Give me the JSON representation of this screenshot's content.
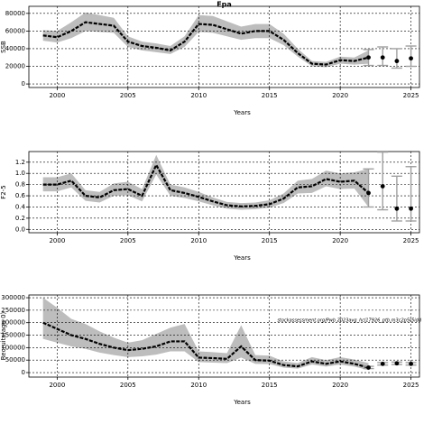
{
  "chart_data": [
    {
      "type": "band-line",
      "title": "Epa",
      "ylabel": "SSB",
      "xlabel": "Years",
      "x": [
        1999,
        2000,
        2001,
        2002,
        2003,
        2004,
        2005,
        2006,
        2007,
        2008,
        2009,
        2010,
        2011,
        2012,
        2013,
        2014,
        2015,
        2016,
        2017,
        2018,
        2019,
        2020,
        2021,
        2022
      ],
      "values": [
        55000,
        53000,
        60000,
        70000,
        68000,
        66000,
        48000,
        43000,
        41000,
        38000,
        48000,
        68000,
        67000,
        62000,
        57000,
        60000,
        60000,
        50000,
        35000,
        23000,
        22000,
        27000,
        26000,
        30000
      ],
      "upper": [
        61000,
        60000,
        70000,
        81000,
        78000,
        75000,
        54000,
        48000,
        46000,
        43000,
        54000,
        78000,
        77000,
        71000,
        65000,
        68000,
        68000,
        57000,
        40000,
        26000,
        25000,
        31000,
        30000,
        38000
      ],
      "lower": [
        49000,
        47000,
        52000,
        60000,
        59000,
        58000,
        42000,
        38000,
        36000,
        34000,
        42000,
        59000,
        58000,
        54000,
        50000,
        52000,
        52000,
        44000,
        31000,
        20000,
        19000,
        23000,
        22000,
        23000
      ],
      "proj_x": [
        2022,
        2023,
        2024,
        2025
      ],
      "proj_values": [
        30000,
        30000,
        26000,
        29000
      ],
      "proj_lower": [
        21000,
        21000,
        18000,
        20000
      ],
      "proj_upper": [
        39000,
        42000,
        40000,
        43000
      ],
      "xlim": [
        1998,
        2025.6
      ],
      "xticks": [
        2000,
        2005,
        2010,
        2015,
        2020,
        2025
      ],
      "ylim": [
        -4000,
        88000
      ],
      "yticks": [
        0,
        20000,
        40000,
        60000,
        80000
      ],
      "line_color": "#000000",
      "band_color": "#bdbdbd",
      "errorbar_color": "#a0a0a0",
      "grid": true
    },
    {
      "type": "band-line",
      "ylabel": "F2-5",
      "xlabel": "Years",
      "x": [
        1999,
        2000,
        2001,
        2002,
        2003,
        2004,
        2005,
        2006,
        2007,
        2008,
        2009,
        2010,
        2011,
        2012,
        2013,
        2014,
        2015,
        2016,
        2017,
        2018,
        2019,
        2020,
        2021,
        2022
      ],
      "values": [
        0.8,
        0.8,
        0.87,
        0.6,
        0.57,
        0.7,
        0.72,
        0.6,
        1.15,
        0.7,
        0.65,
        0.58,
        0.5,
        0.43,
        0.41,
        0.42,
        0.45,
        0.55,
        0.75,
        0.77,
        0.9,
        0.85,
        0.87,
        0.65
      ],
      "upper": [
        0.93,
        0.93,
        1.0,
        0.7,
        0.67,
        0.82,
        0.85,
        0.72,
        1.33,
        0.8,
        0.75,
        0.67,
        0.57,
        0.49,
        0.47,
        0.48,
        0.52,
        0.64,
        0.87,
        0.9,
        1.05,
        1.0,
        1.02,
        1.08
      ],
      "lower": [
        0.68,
        0.68,
        0.75,
        0.51,
        0.48,
        0.6,
        0.61,
        0.5,
        0.98,
        0.6,
        0.56,
        0.5,
        0.43,
        0.37,
        0.35,
        0.36,
        0.39,
        0.47,
        0.64,
        0.65,
        0.77,
        0.72,
        0.73,
        0.4
      ],
      "proj_x": [
        2022,
        2023,
        2024,
        2025
      ],
      "proj_values": [
        0.65,
        0.77,
        0.37,
        0.37
      ],
      "proj_lower": [
        0.4,
        0.35,
        0.15,
        0.15
      ],
      "proj_upper": [
        1.08,
        1.38,
        0.95,
        1.12
      ],
      "xlim": [
        1998,
        2025.6
      ],
      "xticks": [
        2000,
        2005,
        2010,
        2015,
        2020,
        2025
      ],
      "ylim": [
        -0.06,
        1.39
      ],
      "yticks": [
        {
          "value": 0,
          "label": "0.0"
        },
        0.2,
        0.4,
        0.6,
        0.8,
        {
          "value": 1,
          "label": "1.0"
        },
        1.2
      ],
      "line_color": "#000000",
      "band_color": "#bdbdbd",
      "errorbar_color": "#a0a0a0",
      "grid": true
    },
    {
      "type": "band-line",
      "ylabel": "Recruits(age 0)",
      "xlabel": "Years",
      "annotation": "stockassessment.org/Pwb 2023avg_hcl17926_ptb.m3c2p5r5idd",
      "x": [
        1999,
        2000,
        2001,
        2002,
        2003,
        2004,
        2005,
        2006,
        2007,
        2008,
        2009,
        2010,
        2011,
        2012,
        2013,
        2014,
        2015,
        2016,
        2017,
        2018,
        2019,
        2020,
        2021,
        2022
      ],
      "values": [
        200000,
        175000,
        150000,
        135000,
        115000,
        100000,
        90000,
        95000,
        105000,
        125000,
        125000,
        60000,
        58000,
        55000,
        105000,
        50000,
        48000,
        30000,
        25000,
        45000,
        35000,
        45000,
        35000,
        20000
      ],
      "upper": [
        300000,
        260000,
        215000,
        195000,
        165000,
        140000,
        120000,
        130000,
        155000,
        180000,
        195000,
        85000,
        82000,
        78000,
        190000,
        70000,
        68000,
        45000,
        38000,
        62000,
        50000,
        62000,
        52000,
        38000
      ],
      "lower": [
        135000,
        120000,
        105000,
        95000,
        80000,
        70000,
        62000,
        65000,
        72000,
        85000,
        85000,
        42000,
        40000,
        38000,
        60000,
        35000,
        34000,
        20000,
        16000,
        32000,
        24000,
        32000,
        24000,
        10000
      ],
      "proj_x": [
        2022,
        2023,
        2024,
        2025
      ],
      "proj_values": [
        20000,
        35000,
        37000,
        35000
      ],
      "proj_lower": [
        16000,
        30000,
        32000,
        30000
      ],
      "proj_upper": [
        25000,
        40000,
        42000,
        40000
      ],
      "xlim": [
        1998,
        2025.6
      ],
      "xticks": [
        2000,
        2005,
        2010,
        2015,
        2020,
        2025
      ],
      "ylim": [
        -18000,
        311000
      ],
      "yticks": [
        0,
        50000,
        100000,
        150000,
        200000,
        250000,
        300000
      ],
      "line_color": "#000000",
      "band_color": "#bdbdbd",
      "errorbar_color": "#a0a0a0",
      "grid": true
    }
  ]
}
